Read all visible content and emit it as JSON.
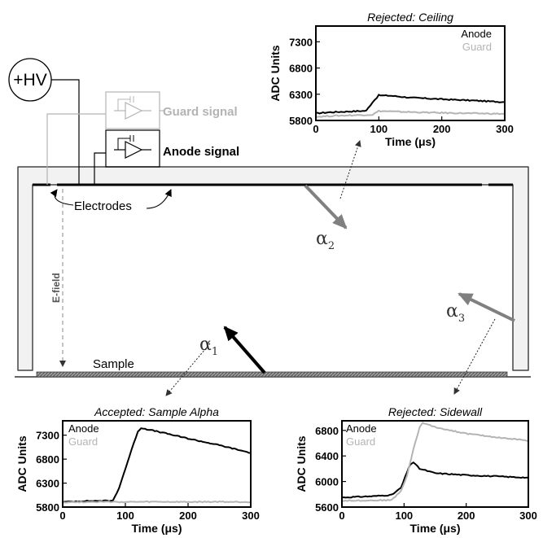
{
  "diagram": {
    "hv_label": "+HV",
    "guard_signal_label": "Guard signal",
    "anode_signal_label": "Anode signal",
    "electrodes_label": "Electrodes",
    "efield_label": "E-field",
    "sample_label": "Sample",
    "alpha_symbol": "α",
    "alpha1_sub": "1",
    "alpha2_sub": "2",
    "alpha3_sub": "3",
    "colors": {
      "anode": "#000000",
      "guard": "#b4b4b4",
      "arrow_gray": "#808080",
      "wall_fill": "#f2f2f2"
    }
  },
  "chart_data": [
    {
      "id": "ceiling",
      "type": "line",
      "title": "Rejected: Ceiling",
      "xlabel": "Time (μs)",
      "ylabel": "ADC Units",
      "xlim": [
        0,
        300
      ],
      "ylim": [
        5800,
        7600
      ],
      "xticks": [
        0,
        100,
        200,
        300
      ],
      "yticks": [
        5800,
        6300,
        6800,
        7300
      ],
      "legend": "top-right",
      "series": [
        {
          "name": "Anode",
          "color": "#000000",
          "x": [
            0,
            20,
            40,
            60,
            80,
            90,
            100,
            120,
            150,
            200,
            250,
            300
          ],
          "y": [
            5935,
            5955,
            5965,
            5975,
            5985,
            6150,
            6280,
            6270,
            6235,
            6205,
            6180,
            6150
          ]
        },
        {
          "name": "Guard",
          "color": "#b4b4b4",
          "x": [
            0,
            30,
            60,
            90,
            100,
            150,
            200,
            250,
            300
          ],
          "y": [
            5870,
            5890,
            5900,
            5910,
            5980,
            5960,
            5945,
            5935,
            5925
          ]
        }
      ]
    },
    {
      "id": "sample",
      "type": "line",
      "title": "Accepted: Sample Alpha",
      "xlabel": "Time (μs)",
      "ylabel": "ADC Units",
      "xlim": [
        0,
        300
      ],
      "ylim": [
        5800,
        7600
      ],
      "xticks": [
        0,
        100,
        200,
        300
      ],
      "yticks": [
        5800,
        6300,
        6800,
        7300
      ],
      "legend": "top-left",
      "series": [
        {
          "name": "Anode",
          "color": "#000000",
          "x": [
            0,
            30,
            60,
            80,
            90,
            100,
            110,
            120,
            125,
            150,
            200,
            250,
            300
          ],
          "y": [
            5905,
            5925,
            5930,
            5930,
            6200,
            6600,
            7000,
            7380,
            7450,
            7380,
            7230,
            7090,
            6930
          ]
        },
        {
          "name": "Guard",
          "color": "#b4b4b4",
          "x": [
            0,
            50,
            100,
            150,
            200,
            250,
            300
          ],
          "y": [
            5900,
            5910,
            5905,
            5910,
            5905,
            5910,
            5905
          ]
        }
      ]
    },
    {
      "id": "sidewall",
      "type": "line",
      "title": "Rejected: Sidewall",
      "xlabel": "Time (μs)",
      "ylabel": "ADC Units",
      "xlim": [
        0,
        300
      ],
      "ylim": [
        5600,
        6950
      ],
      "xticks": [
        0,
        100,
        200,
        300
      ],
      "yticks": [
        5600,
        6000,
        6400,
        6800
      ],
      "legend": "top-left",
      "series": [
        {
          "name": "Anode",
          "color": "#000000",
          "x": [
            0,
            50,
            80,
            95,
            105,
            110,
            115,
            125,
            150,
            200,
            250,
            300
          ],
          "y": [
            5750,
            5770,
            5790,
            5900,
            6150,
            6270,
            6300,
            6200,
            6130,
            6100,
            6080,
            6060
          ]
        },
        {
          "name": "Guard",
          "color": "#b4b4b4",
          "x": [
            0,
            50,
            80,
            95,
            105,
            115,
            125,
            130,
            150,
            200,
            250,
            300
          ],
          "y": [
            5700,
            5705,
            5710,
            5850,
            6100,
            6500,
            6850,
            6920,
            6850,
            6750,
            6690,
            6640
          ]
        }
      ]
    }
  ]
}
